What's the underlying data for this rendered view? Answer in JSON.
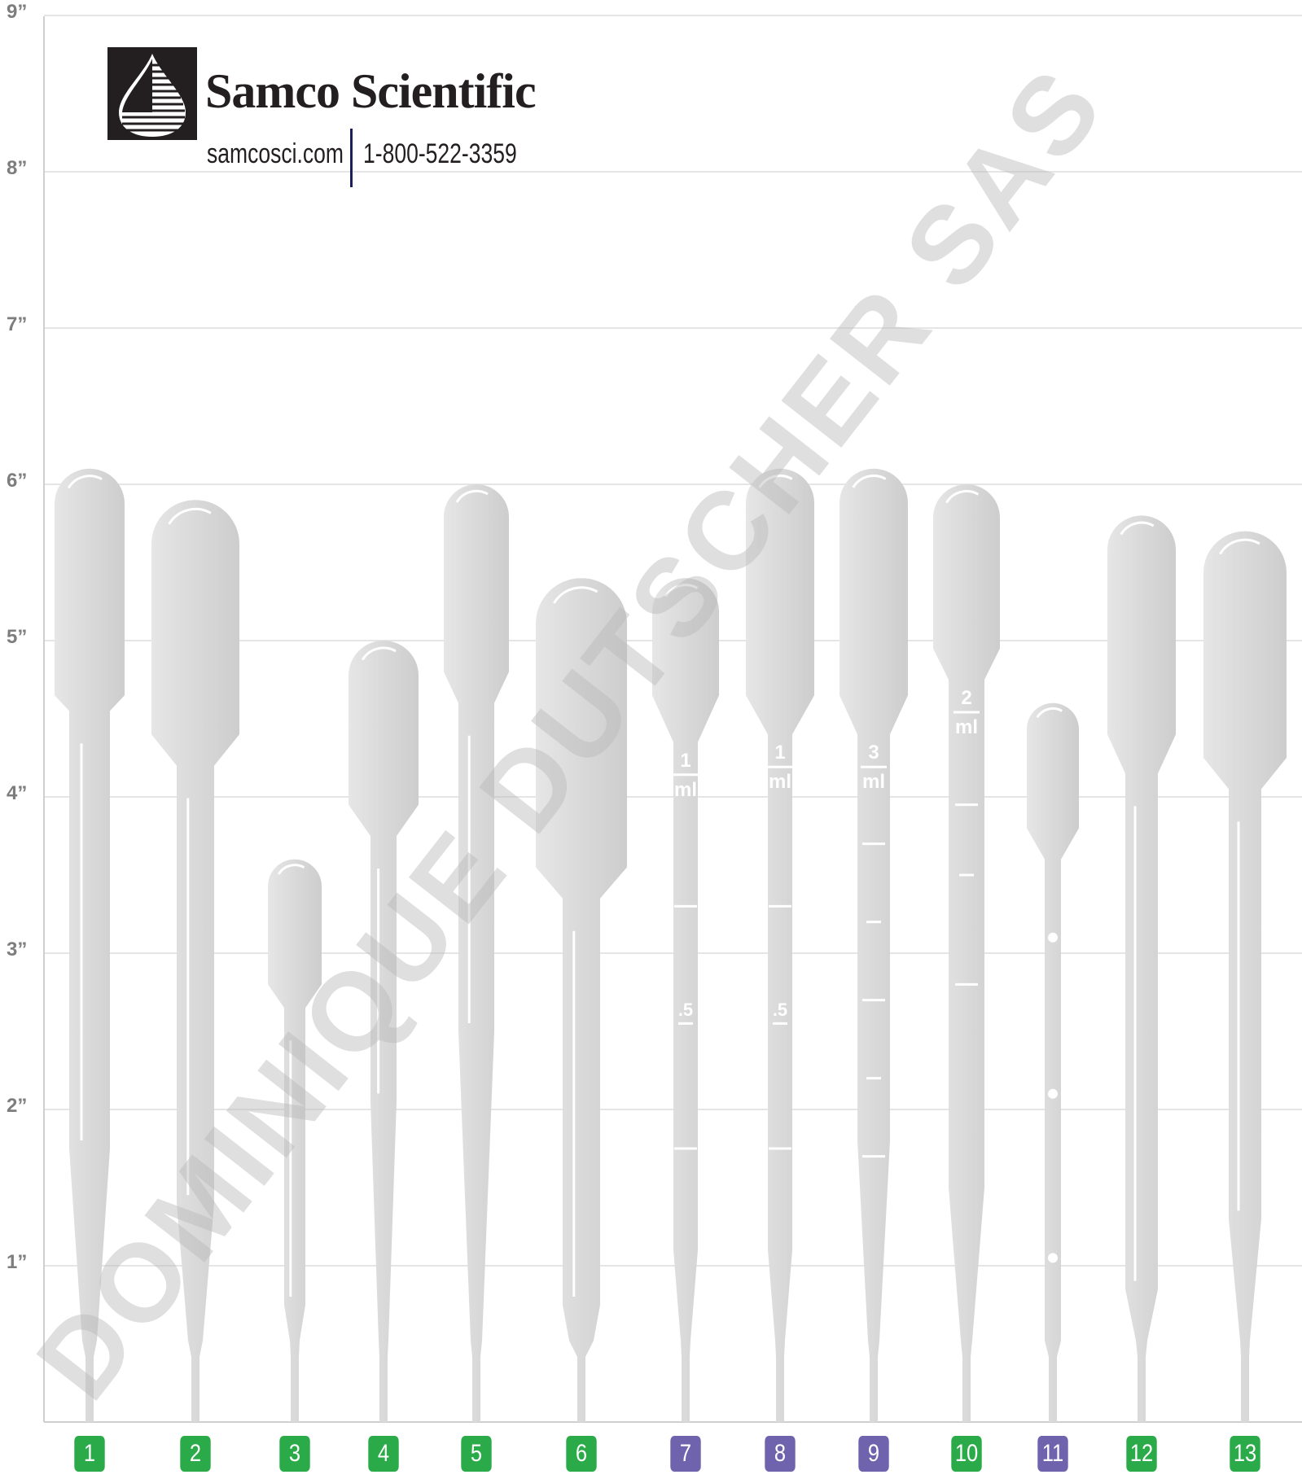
{
  "brand": {
    "name": "Samco Scientific",
    "url": "samcosci.com",
    "phone": "1-800-522-3359",
    "logo_icon": "drop-logo-icon"
  },
  "watermark": "DOMINIQUE DUTSCHER SAS",
  "y_axis": {
    "unit": "inch",
    "labels": [
      "1”",
      "2”",
      "3”",
      "4”",
      "5”",
      "6”",
      "7”",
      "8”",
      "9”"
    ]
  },
  "colors": {
    "green_badge": "#2aaa48",
    "purple_badge": "#6f63ad",
    "pipette": "#dcdcdd",
    "gridline": "#e5e5e5",
    "axis": "#cfcfcf"
  },
  "pipettes": [
    {
      "number": "1",
      "badge": "green",
      "length_in": 6.1
    },
    {
      "number": "2",
      "badge": "green",
      "length_in": 5.9
    },
    {
      "number": "3",
      "badge": "green",
      "length_in": 3.6
    },
    {
      "number": "4",
      "badge": "green",
      "length_in": 5.0
    },
    {
      "number": "5",
      "badge": "green",
      "length_in": 6.0
    },
    {
      "number": "6",
      "badge": "green",
      "length_in": 5.4
    },
    {
      "number": "7",
      "badge": "purple",
      "length_in": 5.4,
      "graduations": [
        "1",
        "ml",
        ".5"
      ]
    },
    {
      "number": "8",
      "badge": "purple",
      "length_in": 6.1,
      "graduations": [
        "1",
        "ml",
        ".5"
      ]
    },
    {
      "number": "9",
      "badge": "purple",
      "length_in": 6.1,
      "graduations": [
        "3",
        "ml"
      ]
    },
    {
      "number": "10",
      "badge": "green",
      "length_in": 6.0,
      "graduations": [
        "2",
        "ml"
      ]
    },
    {
      "number": "11",
      "badge": "purple",
      "length_in": 4.6
    },
    {
      "number": "12",
      "badge": "green",
      "length_in": 5.8
    },
    {
      "number": "13",
      "badge": "green",
      "length_in": 5.7
    }
  ]
}
